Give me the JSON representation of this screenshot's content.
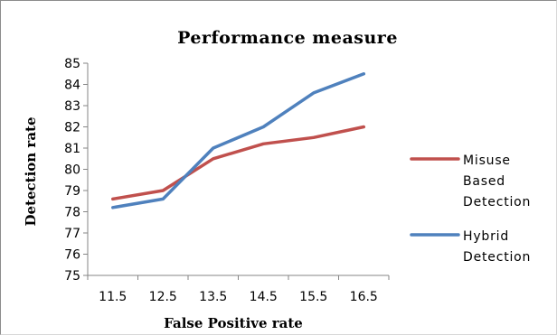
{
  "chart_data": {
    "type": "line",
    "title": "Performance measure",
    "xlabel": "False Positive rate",
    "ylabel": "Detection rate",
    "x": [
      11.5,
      12.5,
      13.5,
      14.5,
      15.5,
      16.5
    ],
    "x_ticks": [
      "11.5",
      "12.5",
      "13.5",
      "14.5",
      "15.5",
      "16.5"
    ],
    "y_ticks": [
      "75",
      "76",
      "77",
      "78",
      "79",
      "80",
      "81",
      "82",
      "83",
      "84",
      "85"
    ],
    "ylim": [
      75,
      85
    ],
    "grid": false,
    "legend_position": "right",
    "series": [
      {
        "name": "Misuse Based Detection",
        "legend_lines": [
          "Misuse",
          "Based",
          "Detection"
        ],
        "color": "#c0504d",
        "values": [
          78.6,
          79.0,
          80.5,
          81.2,
          81.5,
          82.0
        ]
      },
      {
        "name": "Hybrid Detection",
        "legend_lines": [
          "Hybrid",
          "Detection"
        ],
        "color": "#4f81bd",
        "values": [
          78.2,
          78.6,
          81.0,
          82.0,
          83.6,
          84.5
        ]
      }
    ]
  }
}
